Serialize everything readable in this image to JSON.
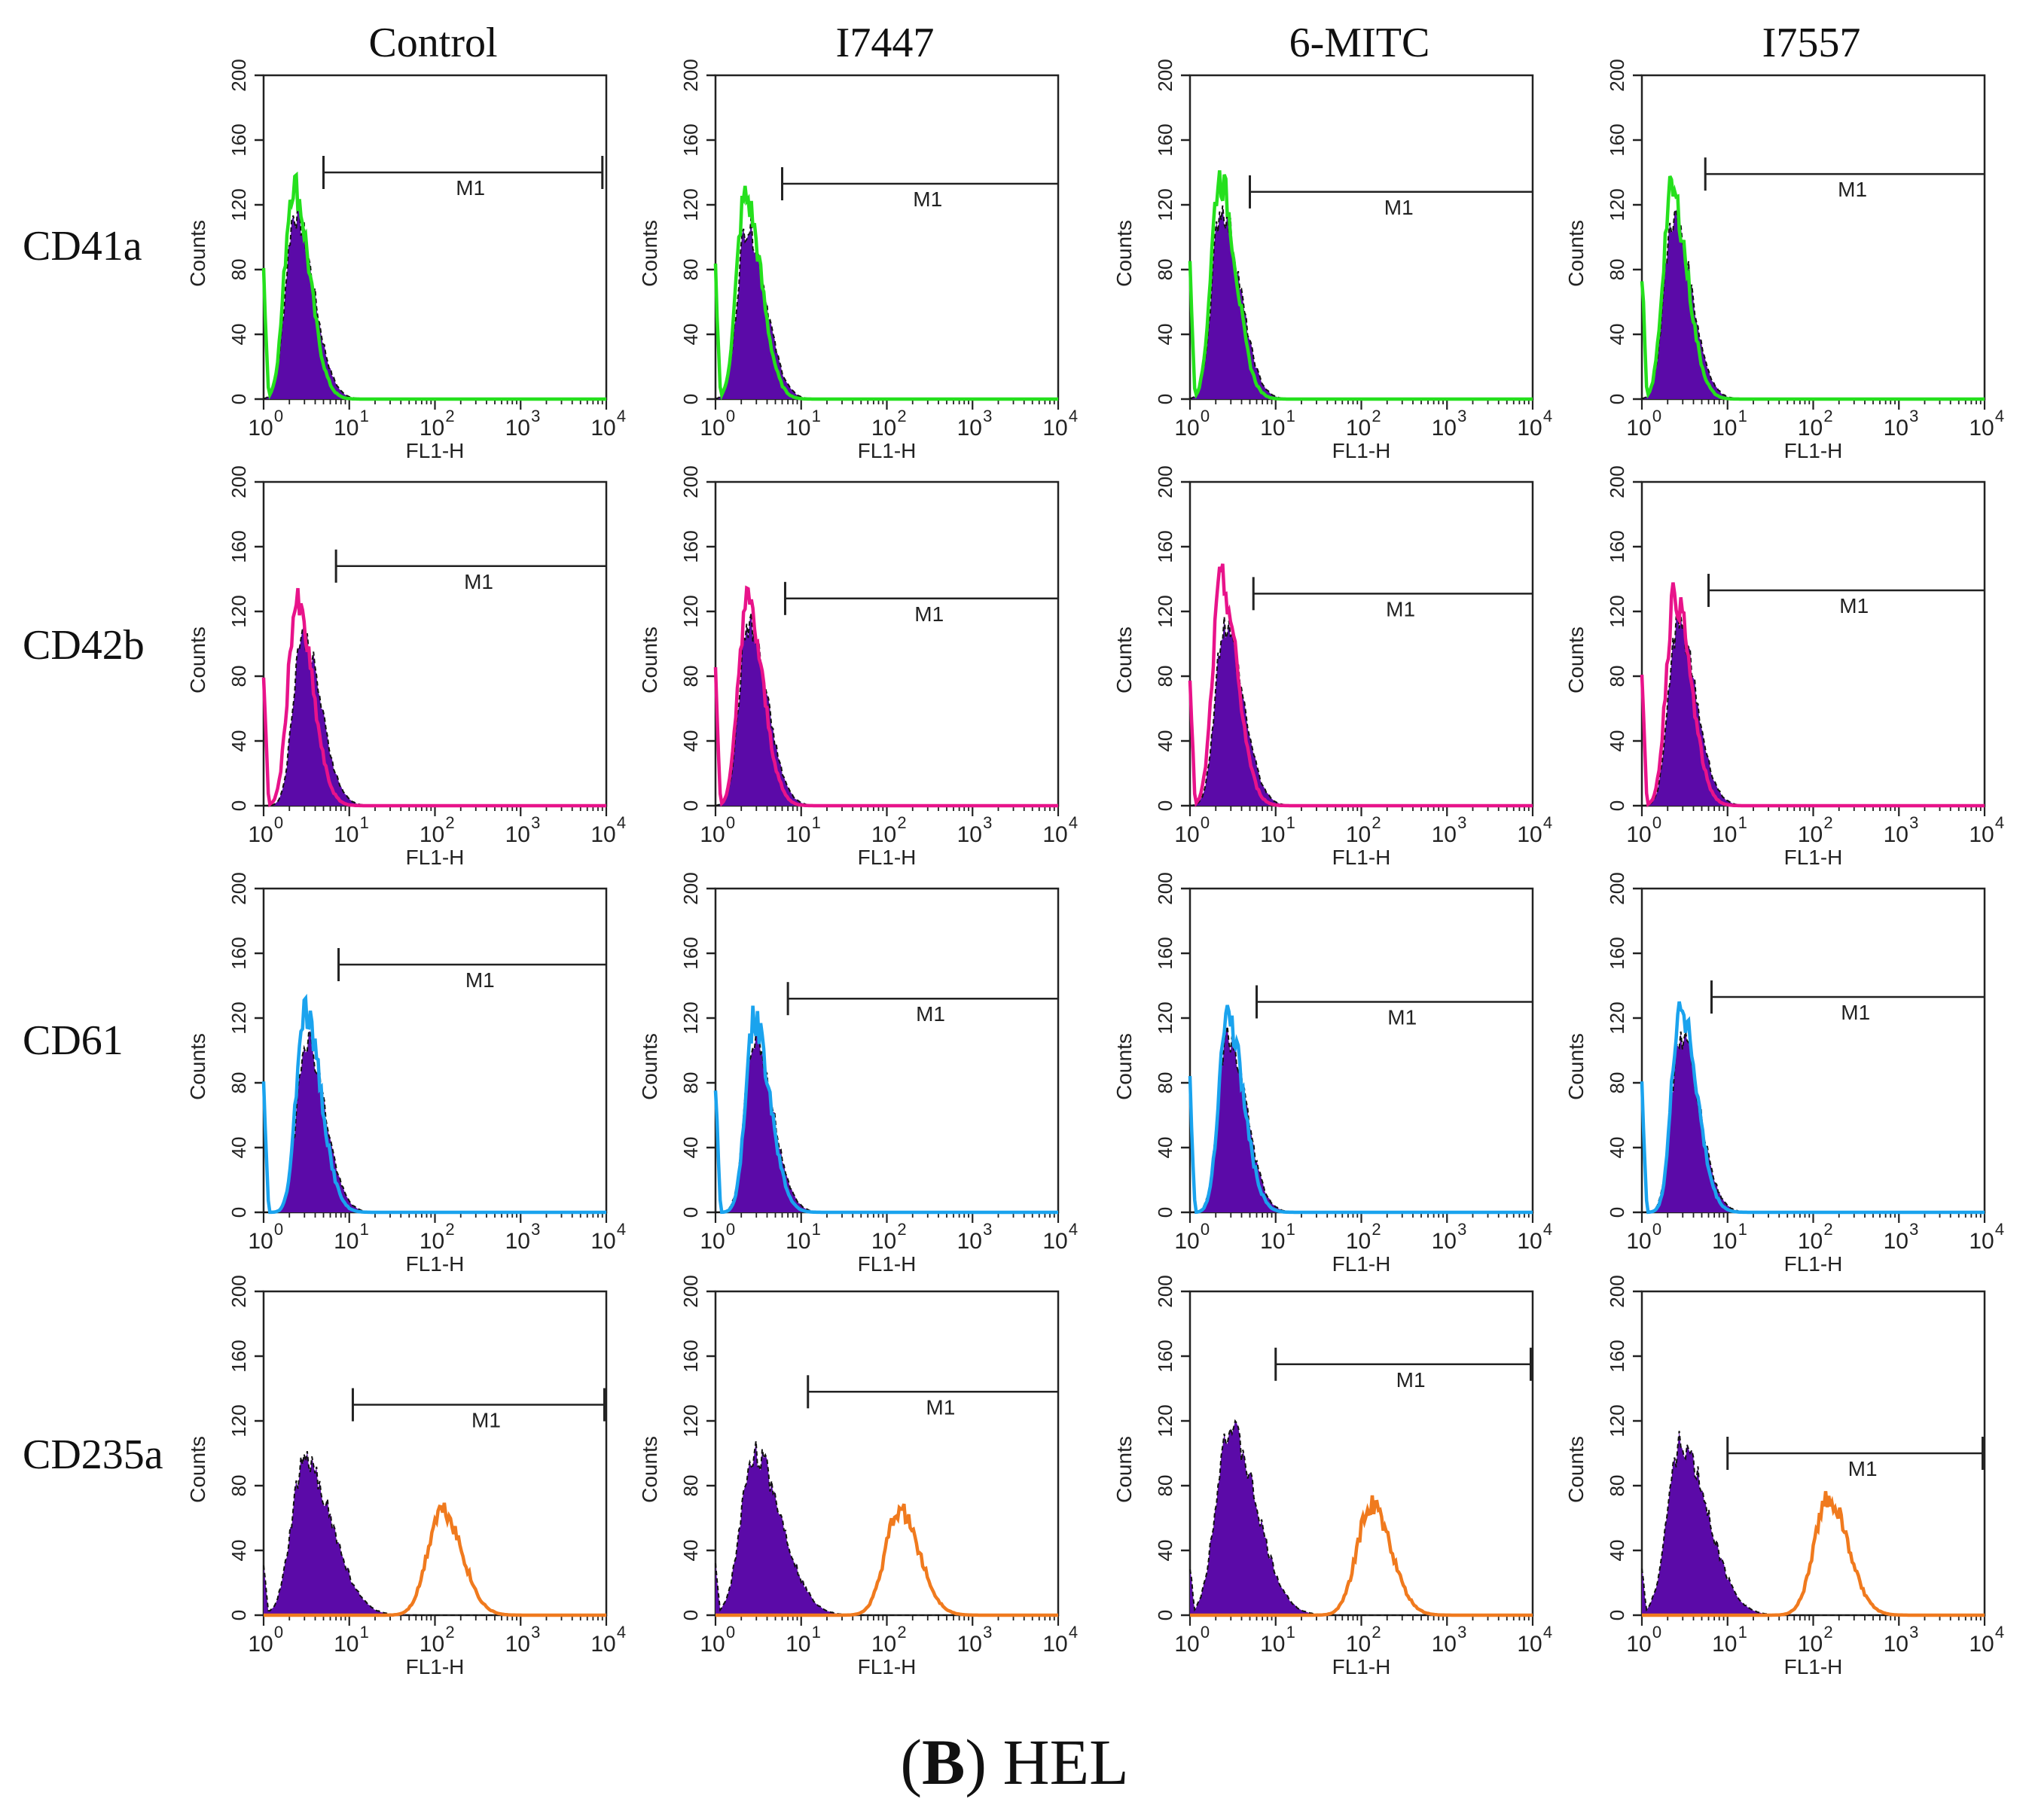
{
  "column_headers": [
    "Control",
    "I7447",
    "6-MITC",
    "I7557"
  ],
  "row_labels": [
    "CD41a",
    "CD42b",
    "CD61",
    "CD235a"
  ],
  "caption": {
    "bold": "B",
    "prefix": "(",
    "suffix": ") HEL"
  },
  "colors": {
    "isotype_fill": "#5b0aa8",
    "isotype_outline": "#111111",
    "CD41a": "#25e01d",
    "CD42b": "#e8138a",
    "CD61": "#1aa3ee",
    "CD235a": "#f07a1e"
  },
  "chart_data": {
    "type": "histogram-grid",
    "description_axis": "log-scale fluorescence FL1-H vs Counts",
    "xlabel": "FL1-H",
    "ylabel": "Counts",
    "x_scale": "log10",
    "xlim": [
      1,
      10000
    ],
    "ylim": [
      0,
      200
    ],
    "y_ticks": [
      "0",
      "40",
      "80",
      "120",
      "160",
      "200"
    ],
    "x_ticks": [
      "10",
      "10",
      "10",
      "10",
      "10"
    ],
    "x_tick_exponents": [
      "0",
      "1",
      "2",
      "3",
      "4"
    ],
    "gate_label": "M1",
    "rows": [
      {
        "marker": "CD41a",
        "panels": [
          {
            "treatment": "Control",
            "gate": [
              5,
              9000
            ],
            "gate_y": 140,
            "iso_peak_x": 2.3,
            "iso_peak": 115,
            "stain_peak_x": 2.2,
            "stain_peak": 133
          },
          {
            "treatment": "I7447",
            "gate": [
              6,
              10000
            ],
            "gate_y": 133,
            "iso_peak_x": 2.3,
            "iso_peak": 108,
            "stain_peak_x": 2.2,
            "stain_peak": 125
          },
          {
            "treatment": "6-MITC",
            "gate": [
              5,
              10000
            ],
            "gate_y": 128,
            "iso_peak_x": 2.3,
            "iso_peak": 118,
            "stain_peak_x": 2.2,
            "stain_peak": 136
          },
          {
            "treatment": "I7557",
            "gate": [
              5.5,
              10000
            ],
            "gate_y": 139,
            "iso_peak_x": 2.3,
            "iso_peak": 112,
            "stain_peak_x": 2.2,
            "stain_peak": 128
          }
        ]
      },
      {
        "marker": "CD42b",
        "panels": [
          {
            "treatment": "Control",
            "gate": [
              7,
              10000
            ],
            "gate_y": 148,
            "iso_peak_x": 2.8,
            "iso_peak": 106,
            "stain_peak_x": 2.4,
            "stain_peak": 124
          },
          {
            "treatment": "I7447",
            "gate": [
              6.5,
              10000
            ],
            "gate_y": 128,
            "iso_peak_x": 2.4,
            "iso_peak": 112,
            "stain_peak_x": 2.3,
            "stain_peak": 126
          },
          {
            "treatment": "6-MITC",
            "gate": [
              5.5,
              10000
            ],
            "gate_y": 131,
            "iso_peak_x": 2.5,
            "iso_peak": 112,
            "stain_peak_x": 2.3,
            "stain_peak": 138
          },
          {
            "treatment": "I7557",
            "gate": [
              6,
              10000
            ],
            "gate_y": 133,
            "iso_peak_x": 2.6,
            "iso_peak": 112,
            "stain_peak_x": 2.4,
            "stain_peak": 130
          }
        ]
      },
      {
        "marker": "CD61",
        "panels": [
          {
            "treatment": "Control",
            "gate": [
              7.5,
              10000
            ],
            "gate_y": 153,
            "iso_peak_x": 3.1,
            "iso_peak": 108,
            "stain_peak_x": 3.0,
            "stain_peak": 125
          },
          {
            "treatment": "I7447",
            "gate": [
              7,
              10000
            ],
            "gate_y": 132,
            "iso_peak_x": 2.8,
            "iso_peak": 108,
            "stain_peak_x": 2.8,
            "stain_peak": 118
          },
          {
            "treatment": "6-MITC",
            "gate": [
              6,
              10000
            ],
            "gate_y": 130,
            "iso_peak_x": 2.7,
            "iso_peak": 110,
            "stain_peak_x": 2.7,
            "stain_peak": 122
          },
          {
            "treatment": "I7557",
            "gate": [
              6.5,
              10000
            ],
            "gate_y": 133,
            "iso_peak_x": 2.8,
            "iso_peak": 110,
            "stain_peak_x": 2.8,
            "stain_peak": 128
          }
        ]
      },
      {
        "marker": "CD235a",
        "panels": [
          {
            "treatment": "Control",
            "gate": [
              11,
              9500
            ],
            "gate_y": 130,
            "iso_peak_x": 3.0,
            "iso_peak": 95,
            "stain_peak_x": 120,
            "stain_peak": 66
          },
          {
            "treatment": "I7447",
            "gate": [
              12,
              10000
            ],
            "gate_y": 138,
            "iso_peak_x": 2.8,
            "iso_peak": 100,
            "stain_peak_x": 140,
            "stain_peak": 65
          },
          {
            "treatment": "6-MITC",
            "gate": [
              10,
              9500
            ],
            "gate_y": 155,
            "iso_peak_x": 2.8,
            "iso_peak": 115,
            "stain_peak_x": 130,
            "stain_peak": 68
          },
          {
            "treatment": "I7557",
            "gate": [
              10,
              9500
            ],
            "gate_y": 100,
            "iso_peak_x": 2.8,
            "iso_peak": 105,
            "stain_peak_x": 150,
            "stain_peak": 72
          }
        ]
      }
    ]
  }
}
